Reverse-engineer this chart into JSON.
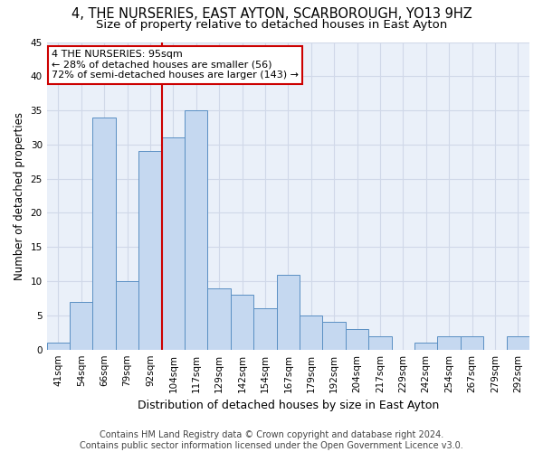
{
  "title": "4, THE NURSERIES, EAST AYTON, SCARBOROUGH, YO13 9HZ",
  "subtitle": "Size of property relative to detached houses in East Ayton",
  "xlabel": "Distribution of detached houses by size in East Ayton",
  "ylabel": "Number of detached properties",
  "categories": [
    "41sqm",
    "54sqm",
    "66sqm",
    "79sqm",
    "92sqm",
    "104sqm",
    "117sqm",
    "129sqm",
    "142sqm",
    "154sqm",
    "167sqm",
    "179sqm",
    "192sqm",
    "204sqm",
    "217sqm",
    "229sqm",
    "242sqm",
    "254sqm",
    "267sqm",
    "279sqm",
    "292sqm"
  ],
  "values": [
    1,
    7,
    34,
    10,
    29,
    31,
    35,
    9,
    8,
    6,
    11,
    5,
    4,
    3,
    2,
    0,
    1,
    2,
    2,
    0,
    2
  ],
  "bar_color": "#c5d8f0",
  "bar_edge_color": "#5a8fc3",
  "property_bin_index": 4,
  "property_label": "4 THE NURSERIES: 95sqm",
  "annotation_line1": "← 28% of detached houses are smaller (56)",
  "annotation_line2": "72% of semi-detached houses are larger (143) →",
  "annotation_box_color": "#ffffff",
  "annotation_box_edge_color": "#cc0000",
  "vline_color": "#cc0000",
  "ylim": [
    0,
    45
  ],
  "yticks": [
    0,
    5,
    10,
    15,
    20,
    25,
    30,
    35,
    40,
    45
  ],
  "grid_color": "#d0d8e8",
  "background_color": "#eaf0f9",
  "footer_line1": "Contains HM Land Registry data © Crown copyright and database right 2024.",
  "footer_line2": "Contains public sector information licensed under the Open Government Licence v3.0.",
  "title_fontsize": 10.5,
  "subtitle_fontsize": 9.5,
  "xlabel_fontsize": 9,
  "ylabel_fontsize": 8.5,
  "tick_fontsize": 7.5,
  "annotation_fontsize": 8,
  "footer_fontsize": 7
}
